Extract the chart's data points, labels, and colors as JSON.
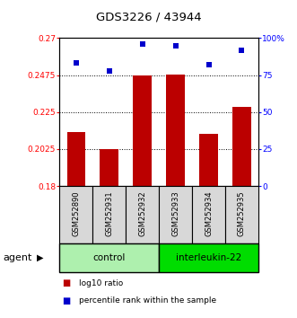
{
  "title": "GDS3226 / 43944",
  "samples": [
    "GSM252890",
    "GSM252931",
    "GSM252932",
    "GSM252933",
    "GSM252934",
    "GSM252935"
  ],
  "log10_ratio": [
    0.213,
    0.2025,
    0.2475,
    0.248,
    0.212,
    0.228
  ],
  "percentile_rank": [
    83,
    78,
    96,
    95,
    82,
    92
  ],
  "ylim_left": [
    0.18,
    0.27
  ],
  "ylim_right": [
    0,
    100
  ],
  "yticks_left": [
    0.18,
    0.2025,
    0.225,
    0.2475,
    0.27
  ],
  "yticks_right": [
    0,
    25,
    50,
    75,
    100
  ],
  "ytick_labels_left": [
    "0.18",
    "0.2025",
    "0.225",
    "0.2475",
    "0.27"
  ],
  "ytick_labels_right": [
    "0",
    "25",
    "50",
    "75",
    "100%"
  ],
  "groups": [
    {
      "label": "control",
      "indices": [
        0,
        1,
        2
      ],
      "color": "#aef0ae"
    },
    {
      "label": "interleukin-22",
      "indices": [
        3,
        4,
        5
      ],
      "color": "#00dd00"
    }
  ],
  "bar_color": "#bb0000",
  "dot_color": "#0000cc",
  "bg_color": "#d8d8d8",
  "agent_label": "agent",
  "legend_log10": "log10 ratio",
  "legend_pct": "percentile rank within the sample",
  "bar_width": 0.55
}
